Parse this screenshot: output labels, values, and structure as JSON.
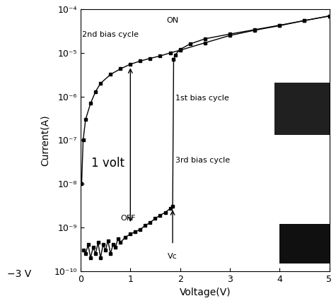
{
  "chart_data": {
    "type": "line",
    "log": "y",
    "x_label": "Voltage(V)",
    "y_label": "Current(A)",
    "xlim": [
      0,
      5
    ],
    "xticks": [
      0,
      1,
      2,
      3,
      4,
      5
    ],
    "ylim": [
      1e-10,
      0.0001
    ],
    "yticks": [
      {
        "value": 1e-10,
        "label": "10⁻¹⁰"
      },
      {
        "value": 1e-09,
        "label": "10⁻⁹"
      },
      {
        "value": 1e-08,
        "label": "10⁻⁸"
      },
      {
        "value": 1e-07,
        "label": "10⁻⁷"
      },
      {
        "value": 1e-06,
        "label": "10⁻⁶"
      },
      {
        "value": 1e-05,
        "label": "10⁻⁵"
      },
      {
        "value": 0.0001,
        "label": "10⁻⁴"
      }
    ],
    "grid": false,
    "series": [
      {
        "name": "2nd bias cycle",
        "color": "#000000",
        "marker": "square",
        "line_style": "solid",
        "x": [
          0.02,
          0.05,
          0.1,
          0.2,
          0.3,
          0.4,
          0.6,
          0.8,
          1.0,
          1.2,
          1.4,
          1.6,
          1.8,
          2.0,
          2.5,
          3.0,
          3.5,
          4.0,
          4.5,
          5.0
        ],
        "values": [
          1e-08,
          1e-07,
          3e-07,
          7e-07,
          1.3e-06,
          2e-06,
          3.2e-06,
          4.3e-06,
          5.5e-06,
          6.5e-06,
          7.5e-06,
          8.5e-06,
          1e-05,
          1.15e-05,
          1.7e-05,
          2.5e-05,
          3.3e-05,
          4.2e-05,
          5.5e-05,
          7e-05
        ]
      },
      {
        "name": "1st bias cycle",
        "color": "#000000",
        "marker": "square",
        "line_style": "solid",
        "x": [
          0.05,
          0.1,
          0.15,
          0.2,
          0.25,
          0.3,
          0.35,
          0.4,
          0.45,
          0.5,
          0.55,
          0.6,
          0.65,
          0.7,
          0.75,
          0.8,
          0.9,
          1.0,
          1.1,
          1.2,
          1.3,
          1.4,
          1.5,
          1.6,
          1.7,
          1.8,
          1.85,
          1.87,
          1.9,
          2.0,
          2.2,
          2.5,
          3.0,
          3.5,
          4.0,
          4.5,
          5.0
        ],
        "values": [
          3e-10,
          2.5e-10,
          4e-10,
          2e-10,
          3.5e-10,
          2.5e-10,
          4.5e-10,
          2e-10,
          4e-10,
          3e-10,
          5e-10,
          2.5e-10,
          4e-10,
          3.5e-10,
          5.5e-10,
          4.5e-10,
          6e-10,
          7e-10,
          8e-10,
          9e-10,
          1.1e-09,
          1.3e-09,
          1.6e-09,
          1.9e-09,
          2.2e-09,
          2.7e-09,
          3e-09,
          7e-06,
          9e-06,
          1.2e-05,
          1.6e-05,
          2.1e-05,
          2.7e-05,
          3.4e-05,
          4.3e-05,
          5.5e-05,
          7e-05
        ]
      }
    ],
    "annotations": [
      {
        "text": "ON",
        "x": 1.85,
        "y": 5.5e-05
      },
      {
        "text": "2nd bias cycle",
        "x": 0.6,
        "y": 2.6e-05
      },
      {
        "text": "1st bias cycle",
        "x": 2.45,
        "y": 9e-07
      },
      {
        "text": "3rd bias cycle",
        "x": 2.45,
        "y": 3.5e-08
      },
      {
        "text": "1 volt",
        "x": 0.55,
        "y": 3e-08,
        "arrow_from": [
          1.0,
          1.2e-09
        ],
        "arrow_to": [
          1.0,
          5e-06
        ]
      },
      {
        "text": "OFF",
        "x": 0.95,
        "y": 1.6e-09
      },
      {
        "text": "Vc",
        "x": 1.85,
        "y": 2.2e-10,
        "arrow_from": [
          1.85,
          4e-10
        ],
        "arrow_to": [
          1.85,
          2.8e-09
        ]
      },
      {
        "text": "−3 V"
      }
    ]
  }
}
